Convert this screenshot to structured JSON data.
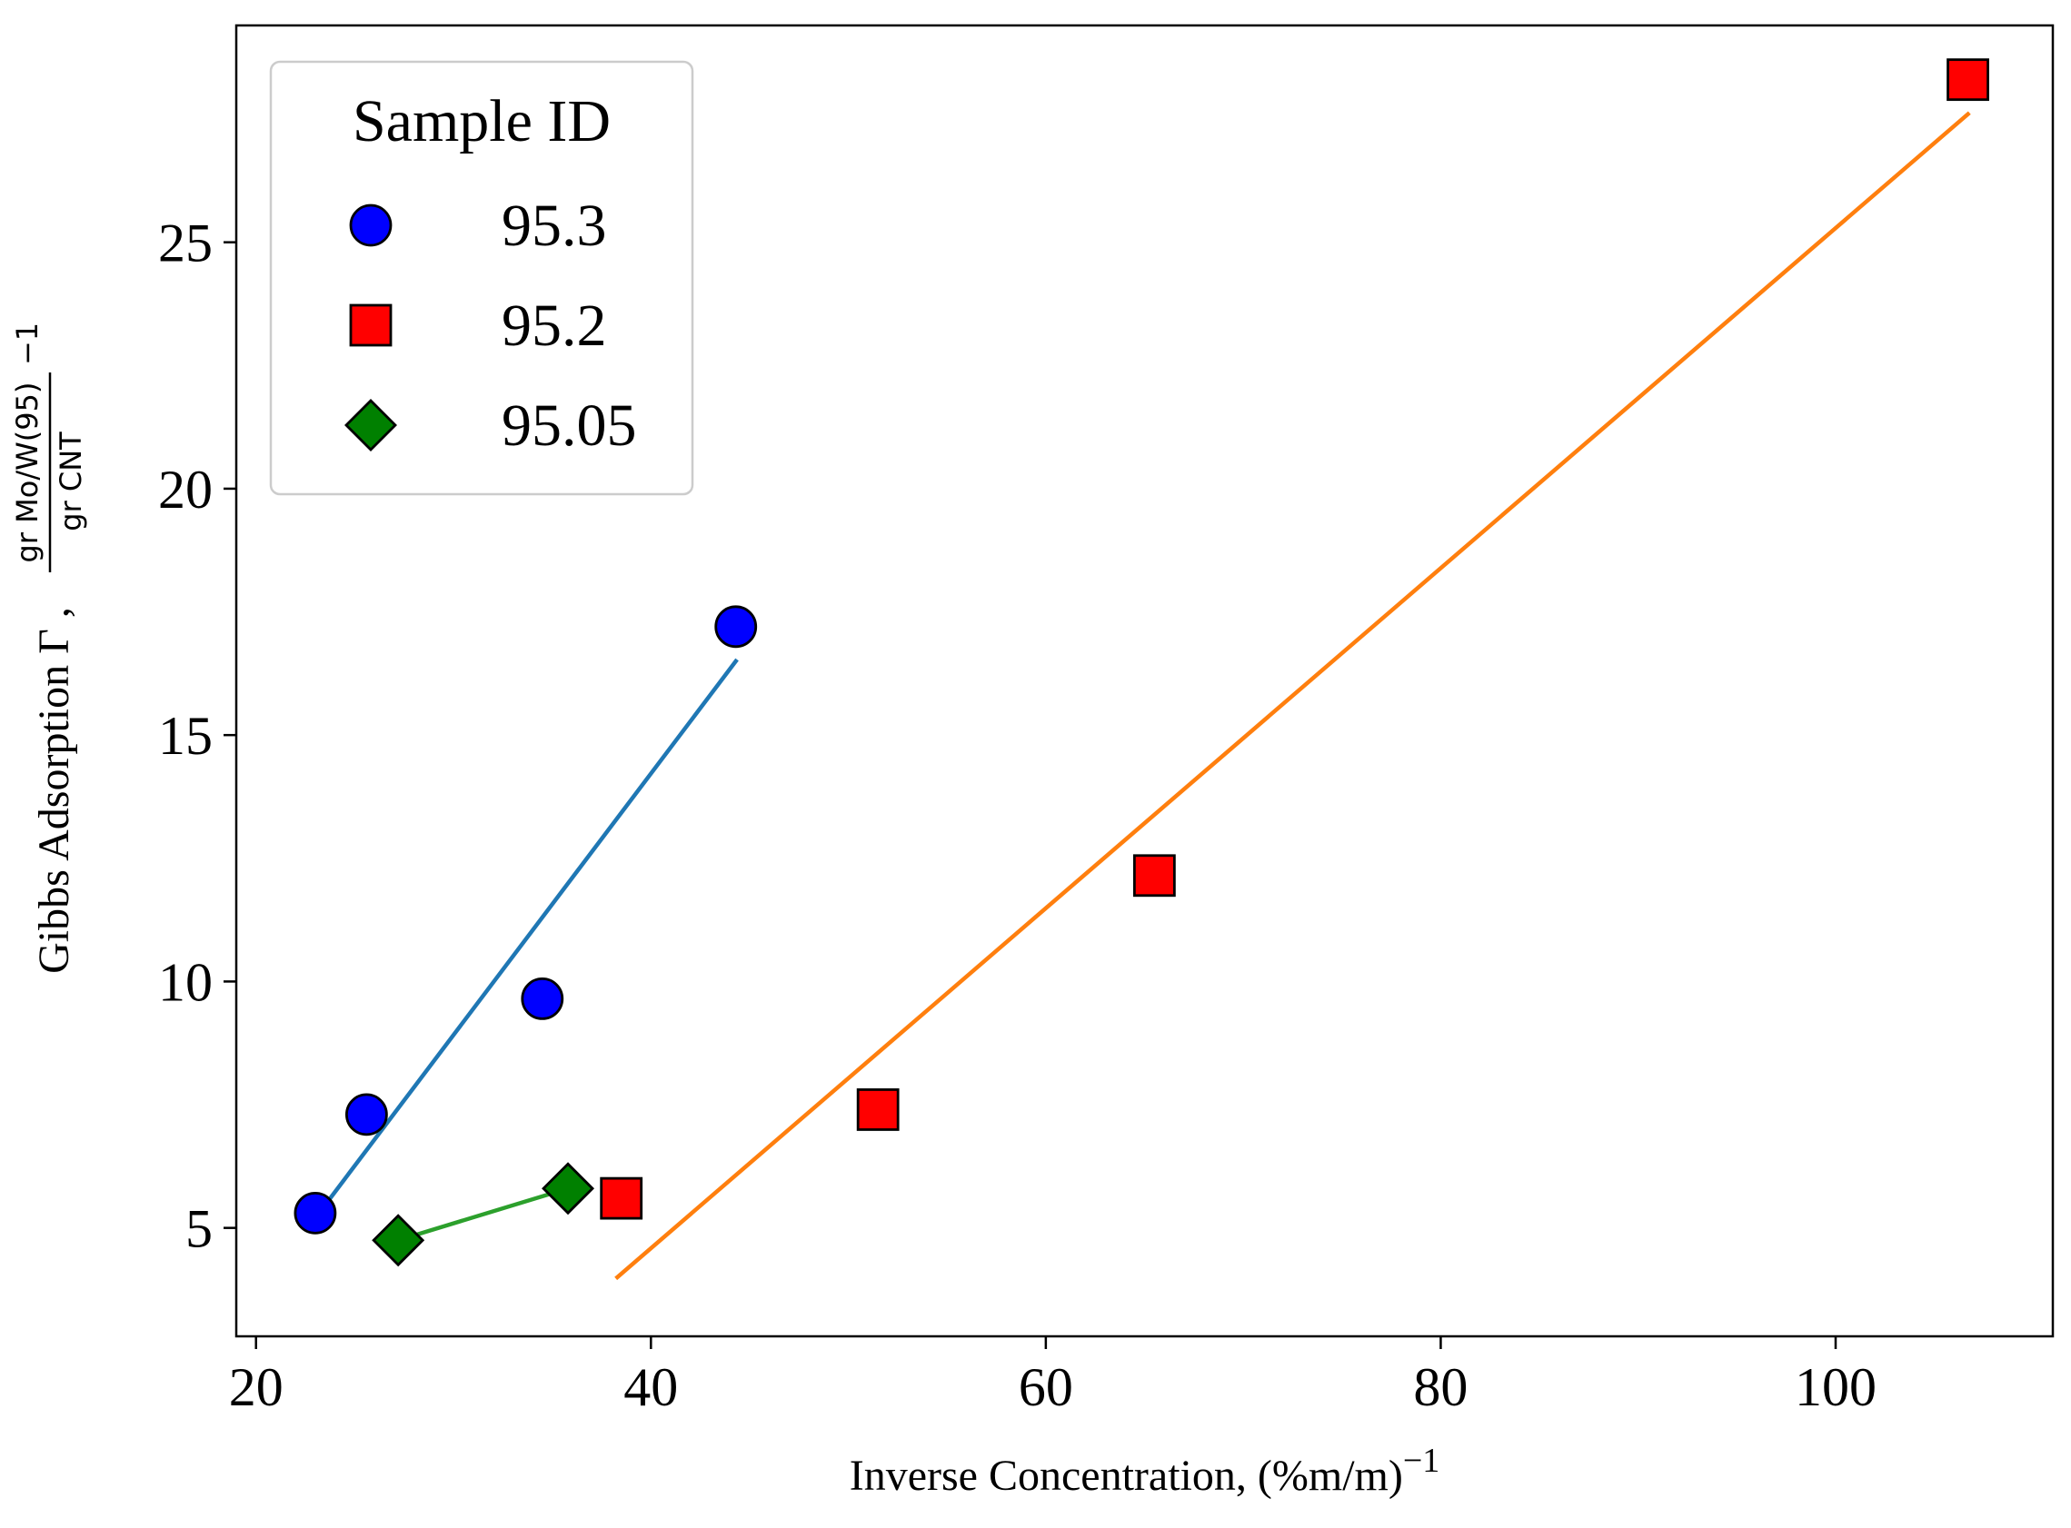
{
  "chart_data": {
    "type": "scatter",
    "xlabel": {
      "text": "Inverse Concentration, (%m/m)",
      "sup": "−1"
    },
    "ylabel": {
      "text": "Gibbs Adsorption Γ ,",
      "numerator": "gr Mo/W(95)",
      "denominator": "gr CNT",
      "sup": "−1"
    },
    "xlim": [
      19,
      111
    ],
    "ylim": [
      2.8,
      29.4
    ],
    "xticks": [
      {
        "value": 20,
        "label": "20"
      },
      {
        "value": 40,
        "label": "40"
      },
      {
        "value": 60,
        "label": "60"
      },
      {
        "value": 80,
        "label": "80"
      },
      {
        "value": 100,
        "label": "100"
      }
    ],
    "yticks": [
      {
        "value": 5,
        "label": "5"
      },
      {
        "value": 10,
        "label": "10"
      },
      {
        "value": 15,
        "label": "15"
      },
      {
        "value": 20,
        "label": "20"
      },
      {
        "value": 25,
        "label": "25"
      }
    ],
    "grid": false,
    "legend": {
      "title": "Sample ID",
      "placement": "upper-left"
    },
    "series": [
      {
        "name": "95.3",
        "marker": "circle",
        "color": "#0000ff",
        "line_color": "#1f77b4",
        "x": [
          23.0,
          25.6,
          34.5,
          44.3
        ],
        "y": [
          5.3,
          7.3,
          9.65,
          17.2
        ],
        "fit": {
          "x": [
            23.0,
            44.3
          ],
          "y": [
            5.2,
            16.5
          ]
        }
      },
      {
        "name": "95.2",
        "marker": "square",
        "color": "#ff0000",
        "line_color": "#ff7f0e",
        "x": [
          38.5,
          51.5,
          65.5,
          106.7
        ],
        "y": [
          5.6,
          7.4,
          12.15,
          28.3
        ],
        "fit": {
          "x": [
            38.3,
            106.7
          ],
          "y": [
            4.0,
            27.6
          ]
        }
      },
      {
        "name": "95.05",
        "marker": "diamond",
        "color": "#008000",
        "line_color": "#2ca02c",
        "x": [
          27.2,
          35.8
        ],
        "y": [
          4.75,
          5.8
        ],
        "fit": {
          "x": [
            27.2,
            35.8
          ],
          "y": [
            4.75,
            5.8
          ]
        }
      }
    ]
  }
}
